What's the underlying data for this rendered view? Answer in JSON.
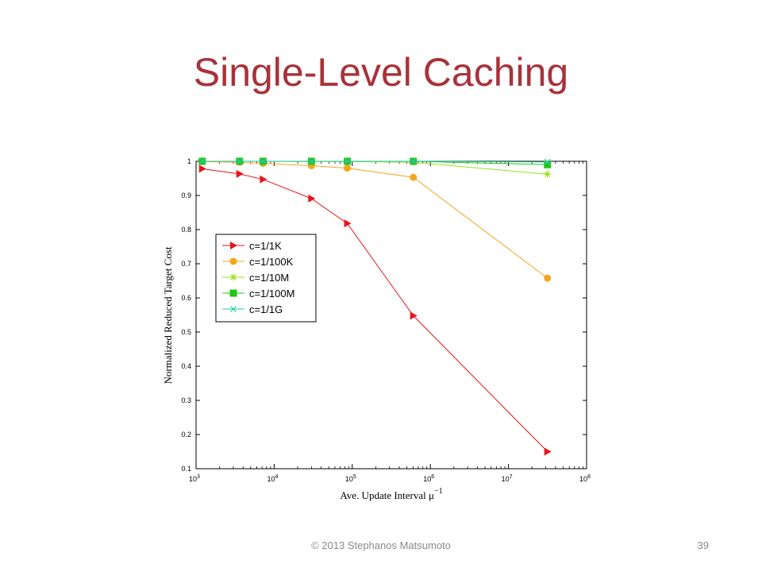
{
  "slide": {
    "title": "Single-Level Caching",
    "footer": "© 2013 Stephanos Matsumoto",
    "page_number": "39"
  },
  "chart_data": {
    "type": "line",
    "xlabel": "Ave. Update Interval μ",
    "xlabel_superscript": "−1",
    "ylabel": "Normalized Reduced Target Cost",
    "xscale": "log",
    "xlim": [
      1000,
      100000000
    ],
    "ylim": [
      0.1,
      1
    ],
    "x_ticks": [
      {
        "base": "10",
        "exp": "3"
      },
      {
        "base": "10",
        "exp": "4"
      },
      {
        "base": "10",
        "exp": "5"
      },
      {
        "base": "10",
        "exp": "6"
      },
      {
        "base": "10",
        "exp": "7"
      },
      {
        "base": "10",
        "exp": "8"
      }
    ],
    "y_ticks": [
      "0.1",
      "0.2",
      "0.3",
      "0.4",
      "0.5",
      "0.6",
      "0.7",
      "0.8",
      "0.9",
      "1"
    ],
    "grid": false,
    "legend_position": "center-left",
    "series": [
      {
        "name": "c=1/1K",
        "color": "#e8141c",
        "marker": "triangle-right",
        "x": [
          1200,
          3600,
          7200,
          30000,
          86400,
          604800,
          31536000
        ],
        "y": [
          0.978,
          0.963,
          0.947,
          0.891,
          0.818,
          0.548,
          0.15
        ]
      },
      {
        "name": "c=1/100K",
        "color": "#f6a51c",
        "marker": "circle",
        "x": [
          1200,
          3600,
          7200,
          30000,
          86400,
          604800,
          31536000
        ],
        "y": [
          0.999,
          0.997,
          0.994,
          0.987,
          0.98,
          0.953,
          0.658
        ]
      },
      {
        "name": "c=1/10M",
        "color": "#9be21b",
        "marker": "star",
        "x": [
          1200,
          3600,
          7200,
          30000,
          86400,
          604800,
          31536000
        ],
        "y": [
          1.0,
          1.0,
          1.0,
          0.999,
          0.999,
          0.997,
          0.962
        ]
      },
      {
        "name": "c=1/100M",
        "color": "#21c614",
        "marker": "square",
        "x": [
          1200,
          3600,
          7200,
          30000,
          86400,
          604800,
          31536000
        ],
        "y": [
          1.0,
          1.0,
          1.0,
          1.0,
          1.0,
          1.0,
          0.99
        ]
      },
      {
        "name": "c=1/1G",
        "color": "#27c9a8",
        "marker": "x",
        "x": [
          1200,
          3600,
          7200,
          30000,
          86400,
          604800,
          31536000
        ],
        "y": [
          1.0,
          1.0,
          1.0,
          1.0,
          1.0,
          1.0,
          0.998
        ]
      }
    ]
  }
}
